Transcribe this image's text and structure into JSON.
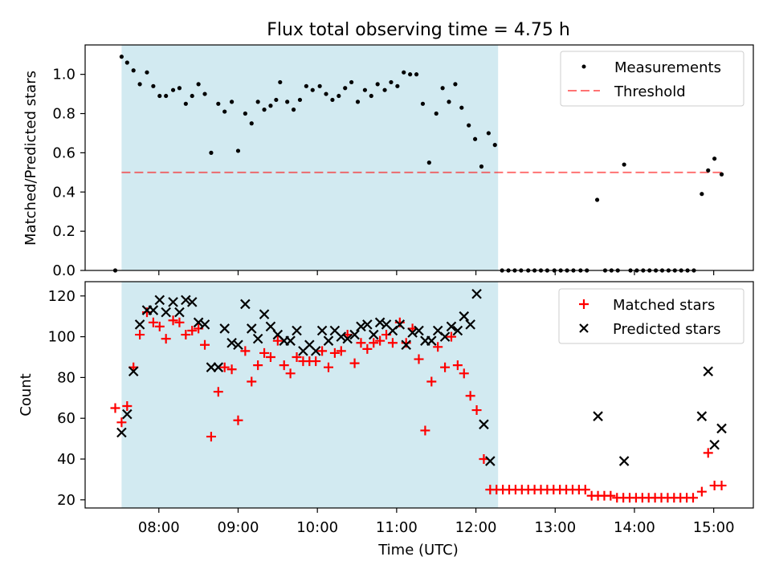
{
  "chart_data": [
    {
      "type": "scatter",
      "title": "Flux total observing time = 4.75 h",
      "xlabel": "",
      "ylabel": "Matched/Predicted stars",
      "xlim": [
        7.07,
        15.5
      ],
      "ylim": [
        0.0,
        1.15
      ],
      "x_ticks": [
        "08:00",
        "09:00",
        "10:00",
        "11:00",
        "12:00",
        "13:00",
        "14:00",
        "15:00"
      ],
      "y_ticks": [
        "0.0",
        "0.2",
        "0.4",
        "0.6",
        "0.8",
        "1.0"
      ],
      "shaded_span": {
        "x_start": 7.53,
        "x_end": 12.28,
        "color": "#add8e6"
      },
      "threshold": 0.5,
      "legend": {
        "position": "top-right",
        "entries": [
          "Measurements",
          "Threshold"
        ]
      },
      "series": [
        {
          "name": "Measurements",
          "marker": "dot",
          "color": "#000000",
          "points": [
            [
              7.45,
              0.0
            ],
            [
              7.53,
              1.09
            ],
            [
              7.6,
              1.06
            ],
            [
              7.68,
              1.02
            ],
            [
              7.76,
              0.95
            ],
            [
              7.85,
              1.01
            ],
            [
              7.93,
              0.94
            ],
            [
              8.01,
              0.89
            ],
            [
              8.09,
              0.89
            ],
            [
              8.18,
              0.92
            ],
            [
              8.26,
              0.93
            ],
            [
              8.34,
              0.85
            ],
            [
              8.42,
              0.89
            ],
            [
              8.5,
              0.95
            ],
            [
              8.58,
              0.9
            ],
            [
              8.66,
              0.6
            ],
            [
              8.75,
              0.85
            ],
            [
              8.83,
              0.81
            ],
            [
              8.92,
              0.86
            ],
            [
              9.0,
              0.61
            ],
            [
              9.09,
              0.8
            ],
            [
              9.17,
              0.75
            ],
            [
              9.25,
              0.86
            ],
            [
              9.33,
              0.82
            ],
            [
              9.41,
              0.84
            ],
            [
              9.48,
              0.87
            ],
            [
              9.53,
              0.96
            ],
            [
              9.62,
              0.86
            ],
            [
              9.7,
              0.82
            ],
            [
              9.78,
              0.87
            ],
            [
              9.86,
              0.94
            ],
            [
              9.94,
              0.92
            ],
            [
              10.03,
              0.94
            ],
            [
              10.11,
              0.9
            ],
            [
              10.19,
              0.87
            ],
            [
              10.27,
              0.89
            ],
            [
              10.35,
              0.93
            ],
            [
              10.43,
              0.96
            ],
            [
              10.51,
              0.86
            ],
            [
              10.6,
              0.92
            ],
            [
              10.68,
              0.89
            ],
            [
              10.76,
              0.95
            ],
            [
              10.85,
              0.92
            ],
            [
              10.93,
              0.96
            ],
            [
              11.01,
              0.94
            ],
            [
              11.09,
              1.01
            ],
            [
              11.17,
              1.0
            ],
            [
              11.25,
              1.0
            ],
            [
              11.33,
              0.85
            ],
            [
              11.41,
              0.55
            ],
            [
              11.5,
              0.8
            ],
            [
              11.58,
              0.93
            ],
            [
              11.66,
              0.86
            ],
            [
              11.74,
              0.95
            ],
            [
              11.82,
              0.83
            ],
            [
              11.91,
              0.74
            ],
            [
              11.99,
              0.67
            ],
            [
              12.07,
              0.53
            ],
            [
              12.16,
              0.7
            ],
            [
              12.24,
              0.64
            ],
            [
              12.33,
              0.0
            ],
            [
              12.41,
              0.0
            ],
            [
              12.49,
              0.0
            ],
            [
              12.57,
              0.0
            ],
            [
              12.66,
              0.0
            ],
            [
              12.74,
              0.0
            ],
            [
              12.82,
              0.0
            ],
            [
              12.9,
              0.0
            ],
            [
              12.99,
              0.0
            ],
            [
              13.07,
              0.0
            ],
            [
              13.15,
              0.0
            ],
            [
              13.23,
              0.0
            ],
            [
              13.32,
              0.0
            ],
            [
              13.4,
              0.0
            ],
            [
              13.53,
              0.36
            ],
            [
              13.63,
              0.0
            ],
            [
              13.71,
              0.0
            ],
            [
              13.79,
              0.0
            ],
            [
              13.87,
              0.54
            ],
            [
              13.95,
              0.0
            ],
            [
              14.03,
              0.0
            ],
            [
              14.11,
              0.0
            ],
            [
              14.19,
              0.0
            ],
            [
              14.27,
              0.0
            ],
            [
              14.35,
              0.0
            ],
            [
              14.43,
              0.0
            ],
            [
              14.51,
              0.0
            ],
            [
              14.59,
              0.0
            ],
            [
              14.67,
              0.0
            ],
            [
              14.75,
              0.0
            ],
            [
              14.85,
              0.39
            ],
            [
              14.93,
              0.51
            ],
            [
              15.01,
              0.57
            ],
            [
              15.1,
              0.49
            ]
          ]
        }
      ]
    },
    {
      "type": "scatter",
      "title": "",
      "xlabel": "Time (UTC)",
      "ylabel": "Count",
      "xlim": [
        7.07,
        15.5
      ],
      "ylim": [
        16,
        127
      ],
      "x_ticks": [
        "08:00",
        "09:00",
        "10:00",
        "11:00",
        "12:00",
        "13:00",
        "14:00",
        "15:00"
      ],
      "y_ticks": [
        "20",
        "40",
        "60",
        "80",
        "100",
        "120"
      ],
      "shaded_span": {
        "x_start": 7.53,
        "x_end": 12.28,
        "color": "#add8e6"
      },
      "legend": {
        "position": "top-right",
        "entries": [
          "Matched stars",
          "Predicted stars"
        ]
      },
      "series": [
        {
          "name": "Matched stars",
          "marker": "plus",
          "color": "#ff0000",
          "points": [
            [
              7.45,
              65
            ],
            [
              7.53,
              58
            ],
            [
              7.6,
              66
            ],
            [
              7.68,
              85
            ],
            [
              7.76,
              101
            ],
            [
              7.85,
              112
            ],
            [
              7.93,
              107
            ],
            [
              8.01,
              105
            ],
            [
              8.09,
              99
            ],
            [
              8.18,
              108
            ],
            [
              8.26,
              107
            ],
            [
              8.34,
              101
            ],
            [
              8.42,
              103
            ],
            [
              8.5,
              104
            ],
            [
              8.58,
              96
            ],
            [
              8.66,
              51
            ],
            [
              8.75,
              73
            ],
            [
              8.83,
              85
            ],
            [
              8.92,
              84
            ],
            [
              9.0,
              59
            ],
            [
              9.09,
              93
            ],
            [
              9.17,
              78
            ],
            [
              9.25,
              86
            ],
            [
              9.33,
              92
            ],
            [
              9.41,
              90
            ],
            [
              9.5,
              98
            ],
            [
              9.58,
              86
            ],
            [
              9.66,
              82
            ],
            [
              9.74,
              90
            ],
            [
              9.82,
              88
            ],
            [
              9.9,
              88
            ],
            [
              9.98,
              88
            ],
            [
              10.06,
              93
            ],
            [
              10.14,
              85
            ],
            [
              10.22,
              92
            ],
            [
              10.3,
              93
            ],
            [
              10.38,
              101
            ],
            [
              10.47,
              87
            ],
            [
              10.55,
              97
            ],
            [
              10.63,
              94
            ],
            [
              10.71,
              97
            ],
            [
              10.79,
              98
            ],
            [
              10.87,
              101
            ],
            [
              10.95,
              97
            ],
            [
              11.04,
              107
            ],
            [
              11.12,
              97
            ],
            [
              11.2,
              104
            ],
            [
              11.28,
              89
            ],
            [
              11.36,
              54
            ],
            [
              11.44,
              78
            ],
            [
              11.52,
              95
            ],
            [
              11.61,
              85
            ],
            [
              11.69,
              100
            ],
            [
              11.77,
              86
            ],
            [
              11.85,
              82
            ],
            [
              11.93,
              71
            ],
            [
              12.01,
              64
            ],
            [
              12.1,
              40
            ],
            [
              12.18,
              25
            ],
            [
              12.26,
              25
            ],
            [
              12.34,
              25
            ],
            [
              12.42,
              25
            ],
            [
              12.5,
              25
            ],
            [
              12.58,
              25
            ],
            [
              12.66,
              25
            ],
            [
              12.74,
              25
            ],
            [
              12.82,
              25
            ],
            [
              12.9,
              25
            ],
            [
              12.98,
              25
            ],
            [
              13.06,
              25
            ],
            [
              13.14,
              25
            ],
            [
              13.22,
              25
            ],
            [
              13.3,
              25
            ],
            [
              13.38,
              25
            ],
            [
              13.46,
              22
            ],
            [
              13.54,
              22
            ],
            [
              13.62,
              22
            ],
            [
              13.7,
              22
            ],
            [
              13.78,
              21
            ],
            [
              13.86,
              21
            ],
            [
              13.94,
              21
            ],
            [
              14.02,
              21
            ],
            [
              14.1,
              21
            ],
            [
              14.18,
              21
            ],
            [
              14.26,
              21
            ],
            [
              14.34,
              21
            ],
            [
              14.42,
              21
            ],
            [
              14.5,
              21
            ],
            [
              14.58,
              21
            ],
            [
              14.66,
              21
            ],
            [
              14.74,
              21
            ],
            [
              14.85,
              24
            ],
            [
              14.93,
              43
            ],
            [
              15.01,
              27
            ],
            [
              15.1,
              27
            ]
          ]
        },
        {
          "name": "Predicted stars",
          "marker": "x",
          "color": "#000000",
          "points": [
            [
              7.53,
              53
            ],
            [
              7.6,
              62
            ],
            [
              7.68,
              83
            ],
            [
              7.76,
              106
            ],
            [
              7.85,
              113
            ],
            [
              7.93,
              113
            ],
            [
              8.01,
              118
            ],
            [
              8.09,
              112
            ],
            [
              8.18,
              117
            ],
            [
              8.26,
              112
            ],
            [
              8.34,
              118
            ],
            [
              8.42,
              117
            ],
            [
              8.5,
              107
            ],
            [
              8.58,
              106
            ],
            [
              8.66,
              85
            ],
            [
              8.75,
              85
            ],
            [
              8.83,
              104
            ],
            [
              8.92,
              97
            ],
            [
              9.0,
              96
            ],
            [
              9.09,
              116
            ],
            [
              9.17,
              104
            ],
            [
              9.25,
              99
            ],
            [
              9.33,
              111
            ],
            [
              9.41,
              105
            ],
            [
              9.5,
              101
            ],
            [
              9.58,
              98
            ],
            [
              9.66,
              98
            ],
            [
              9.74,
              103
            ],
            [
              9.82,
              93
            ],
            [
              9.9,
              96
            ],
            [
              9.98,
              93
            ],
            [
              10.06,
              103
            ],
            [
              10.14,
              98
            ],
            [
              10.22,
              103
            ],
            [
              10.3,
              100
            ],
            [
              10.38,
              99
            ],
            [
              10.47,
              101
            ],
            [
              10.55,
              105
            ],
            [
              10.63,
              106
            ],
            [
              10.71,
              101
            ],
            [
              10.79,
              107
            ],
            [
              10.87,
              106
            ],
            [
              10.95,
              103
            ],
            [
              11.04,
              106
            ],
            [
              11.12,
              96
            ],
            [
              11.2,
              102
            ],
            [
              11.28,
              103
            ],
            [
              11.36,
              98
            ],
            [
              11.44,
              98
            ],
            [
              11.52,
              103
            ],
            [
              11.61,
              100
            ],
            [
              11.69,
              105
            ],
            [
              11.77,
              103
            ],
            [
              11.85,
              110
            ],
            [
              11.93,
              106
            ],
            [
              12.01,
              121
            ],
            [
              12.1,
              57
            ],
            [
              12.18,
              39
            ],
            [
              13.54,
              61
            ],
            [
              13.87,
              39
            ],
            [
              14.85,
              61
            ],
            [
              14.93,
              83
            ],
            [
              15.01,
              47
            ],
            [
              15.1,
              55
            ]
          ]
        }
      ]
    }
  ]
}
